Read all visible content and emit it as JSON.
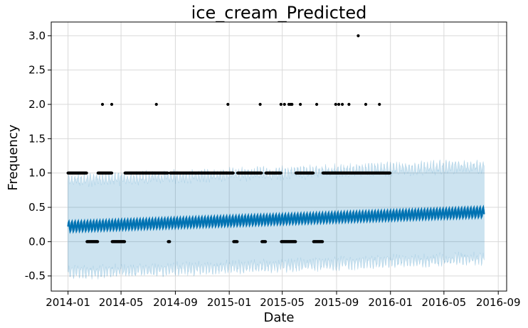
{
  "chart_data": {
    "type": "line",
    "title": "ice_cream_Predicted",
    "xlabel": "Date",
    "ylabel": "Frequency",
    "xlim": [
      "2013-11-24",
      "2016-09-20"
    ],
    "ylim": [
      -0.72,
      3.2
    ],
    "grid": true,
    "x_ticks": [
      "2014-01",
      "2014-05",
      "2014-09",
      "2015-01",
      "2015-05",
      "2015-09",
      "2016-01",
      "2016-05",
      "2016-09"
    ],
    "y_ticks": [
      "-0.5",
      "0.0",
      "0.5",
      "1.0",
      "1.5",
      "2.0",
      "2.5",
      "3.0"
    ],
    "forecast": {
      "start": "2014-01-01",
      "end": "2016-07-31",
      "yhat_start": 0.22,
      "yhat_end": 0.43,
      "weekly_amplitude": 0.07,
      "interval_half_width": 0.67,
      "line_color": "#0072B2",
      "band_color": "#0072B2"
    },
    "observed": {
      "color": "#000000",
      "start": "2014-01-01",
      "end": "2015-12-31",
      "one_ranges": [
        [
          "2014-01-01",
          "2014-02-12"
        ],
        [
          "2014-03-10",
          "2014-04-10"
        ],
        [
          "2014-05-10",
          "2014-08-15"
        ],
        [
          "2014-08-20",
          "2015-01-10"
        ],
        [
          "2015-01-20",
          "2015-03-15"
        ],
        [
          "2015-03-25",
          "2015-04-28"
        ],
        [
          "2015-06-01",
          "2015-07-10"
        ],
        [
          "2015-08-01",
          "2015-12-31"
        ]
      ],
      "two_dates": [
        "2014-03-20",
        "2014-04-10",
        "2014-07-20",
        "2014-12-29",
        "2015-03-12",
        "2015-04-28",
        "2015-05-06",
        "2015-05-16",
        "2015-05-20",
        "2015-05-23",
        "2015-06-11",
        "2015-07-18",
        "2015-08-30",
        "2015-09-06",
        "2015-09-14",
        "2015-09-29",
        "2015-11-06",
        "2015-12-07"
      ],
      "three_dates": [
        "2015-10-20"
      ]
    }
  }
}
